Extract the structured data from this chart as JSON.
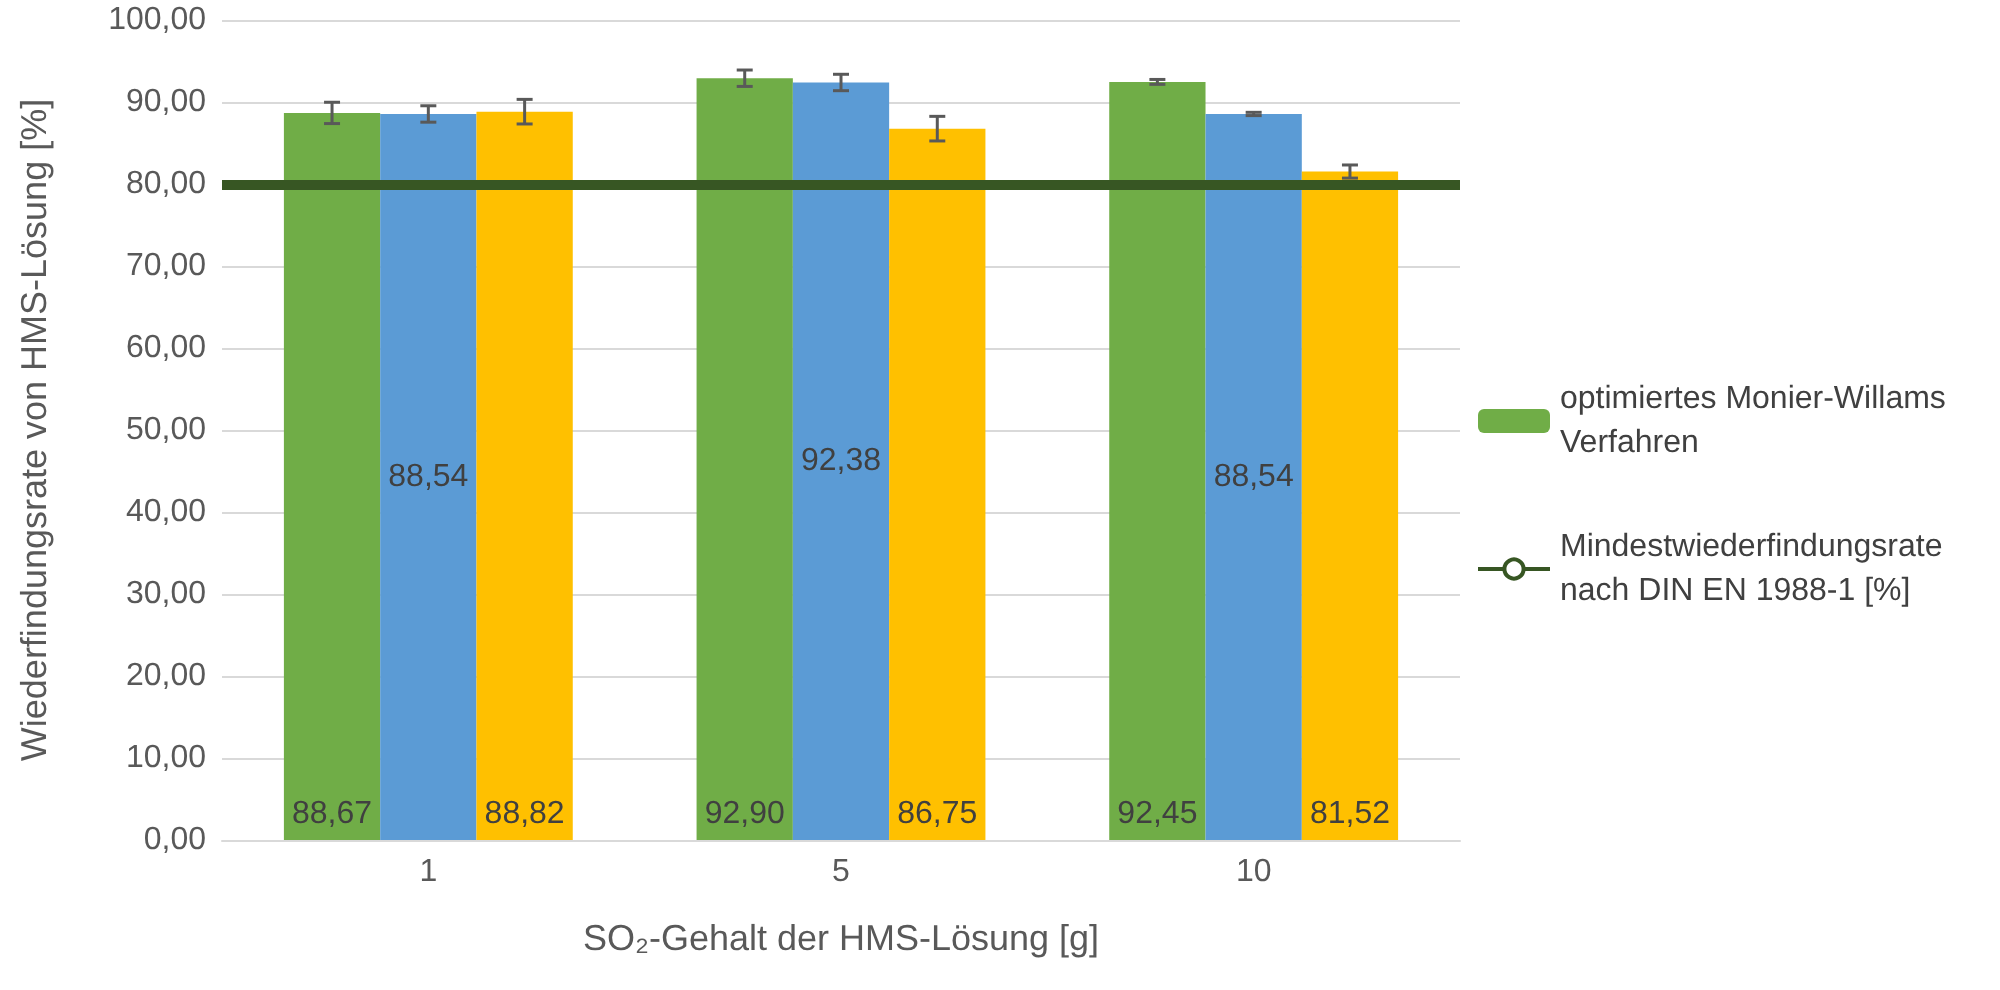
{
  "chart_data": {
    "type": "bar",
    "xlabel": "SO₂-Gehalt der HMS-Lösung [g]",
    "ylabel": "Wiederfindungsrate von HMS-Lösung [%]",
    "categories": [
      "1",
      "5",
      "10"
    ],
    "series": [
      {
        "name": "optimiertes Monier-Willams Verfahren",
        "color": "#70ad47",
        "values": [
          88.67,
          92.9,
          92.45
        ],
        "errors": [
          1.3,
          1.0,
          0.3
        ],
        "value_labels": [
          "88,67",
          "92,90",
          "92,45"
        ]
      },
      {
        "color": "#5b9bd5",
        "values": [
          88.54,
          92.38,
          88.54
        ],
        "errors": [
          1.0,
          1.0,
          0.2
        ],
        "value_labels": [
          "88,54",
          "92,38",
          "88,54"
        ]
      },
      {
        "color": "#ffc000",
        "values": [
          88.82,
          86.75,
          81.52
        ],
        "errors": [
          1.5,
          1.5,
          0.8
        ],
        "value_labels": [
          "88,82",
          "86,75",
          "81,52"
        ]
      }
    ],
    "ylim": [
      0,
      100
    ],
    "yticks": [
      {
        "value": 0,
        "label": "0,00"
      },
      {
        "value": 10,
        "label": "10,00"
      },
      {
        "value": 20,
        "label": "20,00"
      },
      {
        "value": 30,
        "label": "30,00"
      },
      {
        "value": 40,
        "label": "40,00"
      },
      {
        "value": 50,
        "label": "50,00"
      },
      {
        "value": 60,
        "label": "60,00"
      },
      {
        "value": 70,
        "label": "70,00"
      },
      {
        "value": 80,
        "label": "80,00"
      },
      {
        "value": 90,
        "label": "90,00"
      },
      {
        "value": 100,
        "label": "100,00"
      }
    ],
    "ref_lines": [
      {
        "axis": "y",
        "value": 80,
        "label": "Mindestwiederfindungsrate nach DIN EN 1988-1 [%]",
        "color": "#375623",
        "line_style": "solid"
      }
    ],
    "grid": true,
    "legend": "right"
  }
}
